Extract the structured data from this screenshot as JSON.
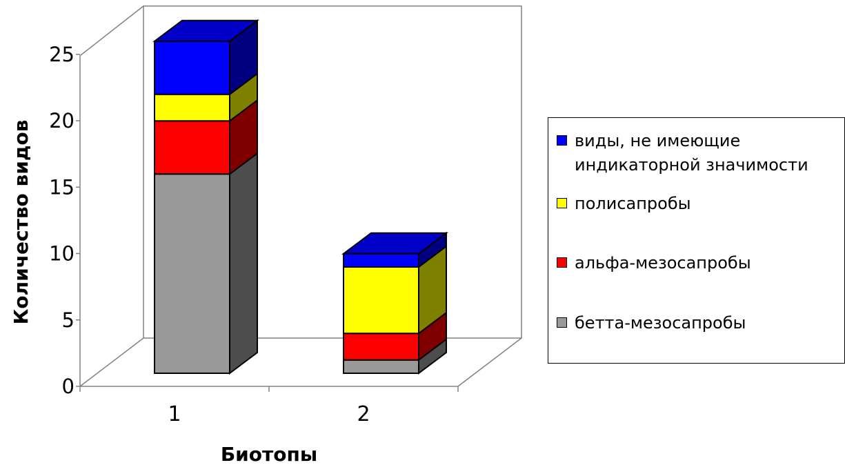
{
  "chart_data": {
    "type": "bar",
    "stacked": true,
    "three_d": true,
    "title": "",
    "xlabel": "Биотопы",
    "ylabel": "Количество видов",
    "categories": [
      "1",
      "2"
    ],
    "ylim": [
      0,
      25
    ],
    "yticks": [
      "0",
      "5",
      "10",
      "15",
      "20",
      "25"
    ],
    "grid": false,
    "legend_position": "right",
    "series": [
      {
        "name": "бетта-мезосапробы",
        "values": [
          15,
          1
        ],
        "color": "#999999",
        "side_color": "#4d4d4d"
      },
      {
        "name": "альфа-мезосапробы",
        "values": [
          4,
          2
        ],
        "color": "#ff0000",
        "side_color": "#800000"
      },
      {
        "name": "полисапробы",
        "values": [
          2,
          5
        ],
        "color": "#ffff00",
        "side_color": "#808000"
      },
      {
        "name": "виды, не имеющие индикаторной значимости",
        "values": [
          4,
          1
        ],
        "color": "#0000ff",
        "side_color": "#000080"
      }
    ]
  },
  "legend": {
    "items": [
      {
        "label": "виды, не имеющие\nиндикаторной значимости",
        "color": "#0000ff"
      },
      {
        "label": "полисапробы",
        "color": "#ffff00"
      },
      {
        "label": "альфа-мезосапробы",
        "color": "#ff0000"
      },
      {
        "label": "бетта-мезосапробы",
        "color": "#999999"
      }
    ]
  }
}
